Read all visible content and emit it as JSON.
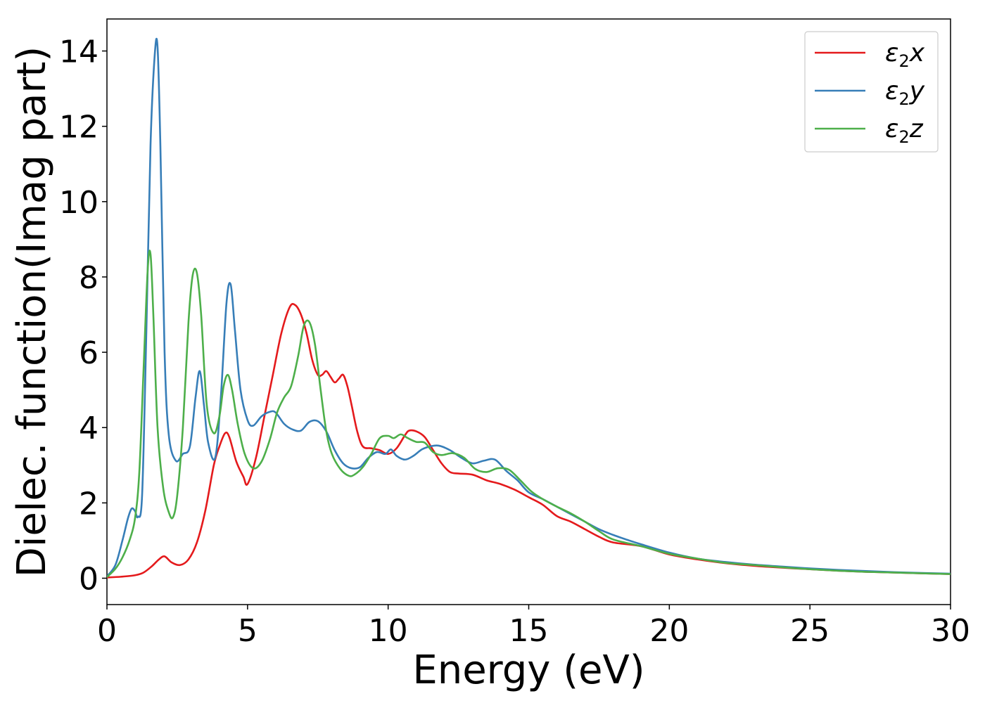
{
  "chart_data": {
    "type": "line",
    "title": "",
    "xlabel": "Energy (eV)",
    "ylabel": "Dielec. function(Imag part)",
    "xlim": [
      0,
      30
    ],
    "ylim": [
      -0.7,
      14.85
    ],
    "xticks": [
      0,
      5,
      10,
      15,
      20,
      25,
      30
    ],
    "yticks": [
      0,
      2,
      4,
      6,
      8,
      10,
      12,
      14
    ],
    "grid": false,
    "legend_position": "top-right",
    "series": [
      {
        "name": "ε2x",
        "legend_main": "ε",
        "legend_sub": "2",
        "legend_suffix": "x",
        "color": "#e41a1c",
        "x": [
          0,
          0.5,
          1.0,
          1.3,
          1.6,
          1.85,
          2.05,
          2.3,
          2.6,
          2.9,
          3.2,
          3.5,
          3.8,
          4.0,
          4.2,
          4.35,
          4.6,
          4.85,
          5.0,
          5.3,
          5.6,
          5.9,
          6.2,
          6.5,
          6.7,
          6.9,
          7.1,
          7.3,
          7.5,
          7.65,
          7.8,
          7.95,
          8.1,
          8.25,
          8.4,
          8.55,
          8.7,
          8.9,
          9.1,
          9.4,
          9.7,
          10.0,
          10.3,
          10.6,
          10.75,
          11.0,
          11.3,
          11.6,
          11.9,
          12.2,
          12.5,
          13.0,
          13.5,
          14.0,
          14.5,
          15.0,
          15.5,
          16.0,
          16.5,
          17.0,
          17.5,
          18.0,
          19.0,
          20.0,
          21.0,
          22.0,
          23.0,
          24.0,
          25.0,
          26.0,
          27.0,
          28.0,
          29.0,
          30.0
        ],
        "values": [
          0.02,
          0.04,
          0.08,
          0.15,
          0.32,
          0.5,
          0.58,
          0.42,
          0.35,
          0.5,
          0.95,
          1.8,
          3.0,
          3.5,
          3.85,
          3.75,
          3.1,
          2.7,
          2.5,
          3.2,
          4.3,
          5.4,
          6.5,
          7.2,
          7.25,
          7.0,
          6.5,
          5.8,
          5.4,
          5.4,
          5.5,
          5.35,
          5.2,
          5.3,
          5.4,
          5.1,
          4.6,
          3.9,
          3.5,
          3.45,
          3.4,
          3.3,
          3.45,
          3.8,
          3.92,
          3.9,
          3.75,
          3.4,
          3.05,
          2.82,
          2.78,
          2.75,
          2.6,
          2.5,
          2.35,
          2.15,
          1.95,
          1.65,
          1.5,
          1.3,
          1.1,
          0.95,
          0.85,
          0.63,
          0.5,
          0.4,
          0.33,
          0.28,
          0.24,
          0.2,
          0.17,
          0.15,
          0.13,
          0.11
        ]
      },
      {
        "name": "ε2y",
        "legend_main": "ε",
        "legend_sub": "2",
        "legend_suffix": "y",
        "color": "#377eb8",
        "x": [
          0,
          0.3,
          0.55,
          0.75,
          0.88,
          1.0,
          1.1,
          1.25,
          1.4,
          1.55,
          1.7,
          1.8,
          1.9,
          2.05,
          2.2,
          2.45,
          2.7,
          2.95,
          3.15,
          3.3,
          3.45,
          3.6,
          3.85,
          4.05,
          4.25,
          4.4,
          4.55,
          4.75,
          5.0,
          5.2,
          5.5,
          5.8,
          6.0,
          6.3,
          6.6,
          6.9,
          7.2,
          7.5,
          7.8,
          8.1,
          8.4,
          8.7,
          9.0,
          9.3,
          9.6,
          9.9,
          10.1,
          10.3,
          10.6,
          10.9,
          11.2,
          11.5,
          11.8,
          12.2,
          12.6,
          13.0,
          13.4,
          13.8,
          14.2,
          14.6,
          15.0,
          15.5,
          16.0,
          16.5,
          17.0,
          17.5,
          18.0,
          18.5,
          19.0,
          20.0,
          21.0,
          22.0,
          23.0,
          24.0,
          25.0,
          26.0,
          27.0,
          28.0,
          29.0,
          30.0
        ],
        "values": [
          0.05,
          0.35,
          1.0,
          1.6,
          1.85,
          1.78,
          1.63,
          2.2,
          6.5,
          11.5,
          13.9,
          14.1,
          11.5,
          6.0,
          3.8,
          3.12,
          3.3,
          3.5,
          4.8,
          5.5,
          4.6,
          3.6,
          3.2,
          4.8,
          7.3,
          7.8,
          6.6,
          5.0,
          4.2,
          4.05,
          4.3,
          4.42,
          4.4,
          4.1,
          3.95,
          3.92,
          4.15,
          4.17,
          3.9,
          3.4,
          3.05,
          2.92,
          2.95,
          3.2,
          3.35,
          3.3,
          3.42,
          3.25,
          3.15,
          3.25,
          3.42,
          3.5,
          3.52,
          3.4,
          3.2,
          3.05,
          3.12,
          3.15,
          2.85,
          2.6,
          2.28,
          2.1,
          1.9,
          1.7,
          1.5,
          1.3,
          1.15,
          1.02,
          0.9,
          0.68,
          0.52,
          0.43,
          0.36,
          0.31,
          0.26,
          0.22,
          0.19,
          0.16,
          0.14,
          0.12
        ]
      },
      {
        "name": "ε2z",
        "legend_main": "ε",
        "legend_sub": "2",
        "legend_suffix": "z",
        "color": "#4daf4a",
        "x": [
          0,
          0.3,
          0.55,
          0.8,
          1.0,
          1.15,
          1.3,
          1.45,
          1.55,
          1.65,
          1.8,
          2.0,
          2.2,
          2.35,
          2.5,
          2.7,
          2.9,
          3.05,
          3.2,
          3.35,
          3.55,
          3.8,
          4.0,
          4.15,
          4.3,
          4.45,
          4.65,
          4.9,
          5.2,
          5.5,
          5.8,
          6.05,
          6.3,
          6.55,
          6.8,
          7.0,
          7.2,
          7.4,
          7.6,
          7.8,
          8.0,
          8.3,
          8.6,
          8.8,
          9.1,
          9.4,
          9.7,
          10.0,
          10.2,
          10.45,
          10.7,
          11.0,
          11.3,
          11.6,
          11.9,
          12.3,
          12.7,
          13.1,
          13.5,
          13.9,
          14.3,
          14.7,
          15.1,
          15.5,
          16.0,
          16.5,
          17.0,
          17.5,
          18.0,
          19.0,
          20.0,
          21.0,
          22.0,
          23.0,
          24.0,
          25.0,
          26.0,
          27.0,
          28.0,
          29.0,
          30.0
        ],
        "values": [
          0.03,
          0.25,
          0.55,
          1.0,
          1.6,
          2.8,
          5.5,
          8.2,
          8.6,
          7.0,
          4.0,
          2.4,
          1.75,
          1.62,
          2.2,
          4.0,
          6.8,
          8.05,
          8.1,
          7.0,
          4.6,
          3.85,
          4.3,
          5.1,
          5.4,
          5.0,
          4.1,
          3.3,
          2.92,
          3.1,
          3.7,
          4.4,
          4.8,
          5.1,
          5.9,
          6.7,
          6.8,
          6.2,
          5.0,
          3.9,
          3.3,
          2.9,
          2.72,
          2.75,
          2.95,
          3.3,
          3.72,
          3.78,
          3.72,
          3.82,
          3.72,
          3.62,
          3.6,
          3.35,
          3.27,
          3.32,
          3.2,
          2.9,
          2.82,
          2.92,
          2.88,
          2.6,
          2.3,
          2.1,
          1.9,
          1.72,
          1.5,
          1.25,
          1.03,
          0.85,
          0.65,
          0.52,
          0.41,
          0.35,
          0.29,
          0.24,
          0.2,
          0.17,
          0.15,
          0.13,
          0.11
        ]
      }
    ]
  }
}
